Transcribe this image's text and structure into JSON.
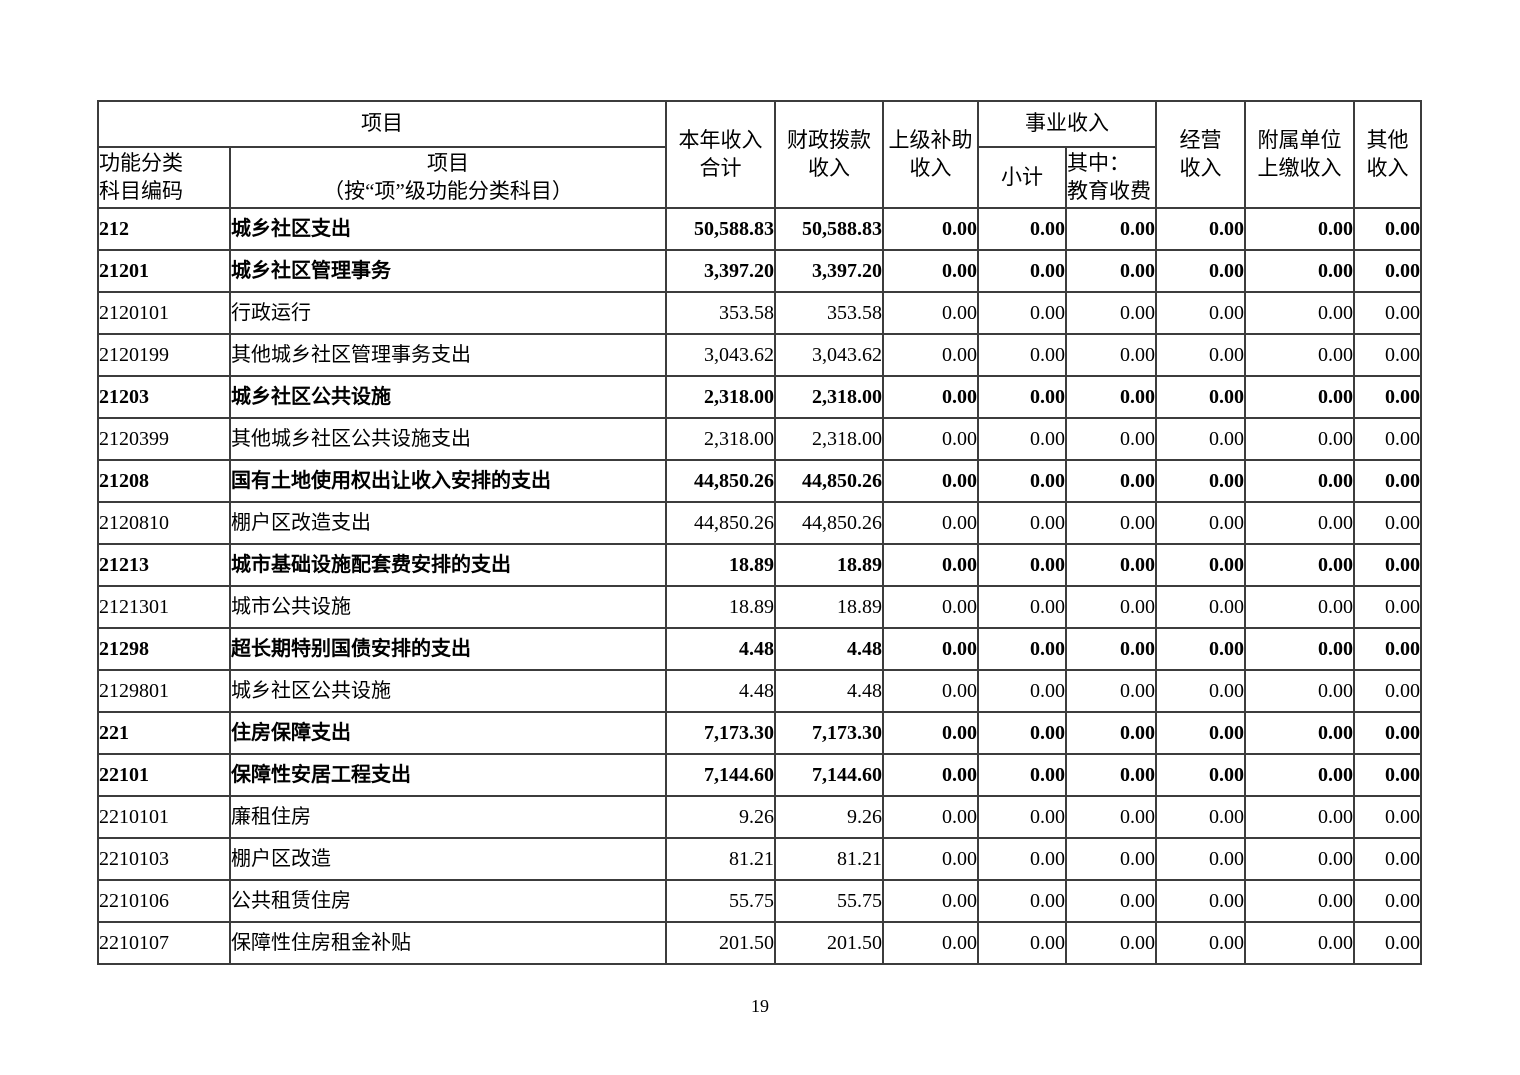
{
  "page": {
    "number": "19"
  },
  "table": {
    "header": {
      "project_group": "项目",
      "code_label": "功能分类\n科目编码",
      "item_label": "项目\n（按“项”级功能分类科目）",
      "col_total": "本年收入\n合计",
      "col_fiscal": "财政拨款\n收入",
      "col_superior": "上级补助\n收入",
      "business_group": "事业收入",
      "col_subtotal": "小计",
      "col_education": "其中：\n教育收费",
      "col_operating": "经营\n收入",
      "col_affiliated": "附属单位\n上缴收入",
      "col_other": "其他\n收入"
    },
    "rows": [
      {
        "code": "212",
        "name": "城乡社区支出",
        "bold": true,
        "values": [
          "50,588.83",
          "50,588.83",
          "0.00",
          "0.00",
          "0.00",
          "0.00",
          "0.00",
          "0.00"
        ]
      },
      {
        "code": "21201",
        "name": "城乡社区管理事务",
        "bold": true,
        "values": [
          "3,397.20",
          "3,397.20",
          "0.00",
          "0.00",
          "0.00",
          "0.00",
          "0.00",
          "0.00"
        ]
      },
      {
        "code": "2120101",
        "name": "行政运行",
        "bold": false,
        "values": [
          "353.58",
          "353.58",
          "0.00",
          "0.00",
          "0.00",
          "0.00",
          "0.00",
          "0.00"
        ]
      },
      {
        "code": "2120199",
        "name": "其他城乡社区管理事务支出",
        "bold": false,
        "values": [
          "3,043.62",
          "3,043.62",
          "0.00",
          "0.00",
          "0.00",
          "0.00",
          "0.00",
          "0.00"
        ]
      },
      {
        "code": "21203",
        "name": "城乡社区公共设施",
        "bold": true,
        "values": [
          "2,318.00",
          "2,318.00",
          "0.00",
          "0.00",
          "0.00",
          "0.00",
          "0.00",
          "0.00"
        ]
      },
      {
        "code": "2120399",
        "name": "其他城乡社区公共设施支出",
        "bold": false,
        "values": [
          "2,318.00",
          "2,318.00",
          "0.00",
          "0.00",
          "0.00",
          "0.00",
          "0.00",
          "0.00"
        ]
      },
      {
        "code": "21208",
        "name": "国有土地使用权出让收入安排的支出",
        "bold": true,
        "values": [
          "44,850.26",
          "44,850.26",
          "0.00",
          "0.00",
          "0.00",
          "0.00",
          "0.00",
          "0.00"
        ]
      },
      {
        "code": "2120810",
        "name": "棚户区改造支出",
        "bold": false,
        "values": [
          "44,850.26",
          "44,850.26",
          "0.00",
          "0.00",
          "0.00",
          "0.00",
          "0.00",
          "0.00"
        ]
      },
      {
        "code": "21213",
        "name": "城市基础设施配套费安排的支出",
        "bold": true,
        "values": [
          "18.89",
          "18.89",
          "0.00",
          "0.00",
          "0.00",
          "0.00",
          "0.00",
          "0.00"
        ]
      },
      {
        "code": "2121301",
        "name": "城市公共设施",
        "bold": false,
        "values": [
          "18.89",
          "18.89",
          "0.00",
          "0.00",
          "0.00",
          "0.00",
          "0.00",
          "0.00"
        ]
      },
      {
        "code": "21298",
        "name": "超长期特别国债安排的支出",
        "bold": true,
        "values": [
          "4.48",
          "4.48",
          "0.00",
          "0.00",
          "0.00",
          "0.00",
          "0.00",
          "0.00"
        ]
      },
      {
        "code": "2129801",
        "name": "城乡社区公共设施",
        "bold": false,
        "values": [
          "4.48",
          "4.48",
          "0.00",
          "0.00",
          "0.00",
          "0.00",
          "0.00",
          "0.00"
        ]
      },
      {
        "code": "221",
        "name": "住房保障支出",
        "bold": true,
        "values": [
          "7,173.30",
          "7,173.30",
          "0.00",
          "0.00",
          "0.00",
          "0.00",
          "0.00",
          "0.00"
        ]
      },
      {
        "code": "22101",
        "name": "保障性安居工程支出",
        "bold": true,
        "values": [
          "7,144.60",
          "7,144.60",
          "0.00",
          "0.00",
          "0.00",
          "0.00",
          "0.00",
          "0.00"
        ]
      },
      {
        "code": "2210101",
        "name": "廉租住房",
        "bold": false,
        "values": [
          "9.26",
          "9.26",
          "0.00",
          "0.00",
          "0.00",
          "0.00",
          "0.00",
          "0.00"
        ]
      },
      {
        "code": "2210103",
        "name": "棚户区改造",
        "bold": false,
        "values": [
          "81.21",
          "81.21",
          "0.00",
          "0.00",
          "0.00",
          "0.00",
          "0.00",
          "0.00"
        ]
      },
      {
        "code": "2210106",
        "name": "公共租赁住房",
        "bold": false,
        "values": [
          "55.75",
          "55.75",
          "0.00",
          "0.00",
          "0.00",
          "0.00",
          "0.00",
          "0.00"
        ]
      },
      {
        "code": "2210107",
        "name": "保障性住房租金补贴",
        "bold": false,
        "values": [
          "201.50",
          "201.50",
          "0.00",
          "0.00",
          "0.00",
          "0.00",
          "0.00",
          "0.00"
        ]
      }
    ]
  }
}
